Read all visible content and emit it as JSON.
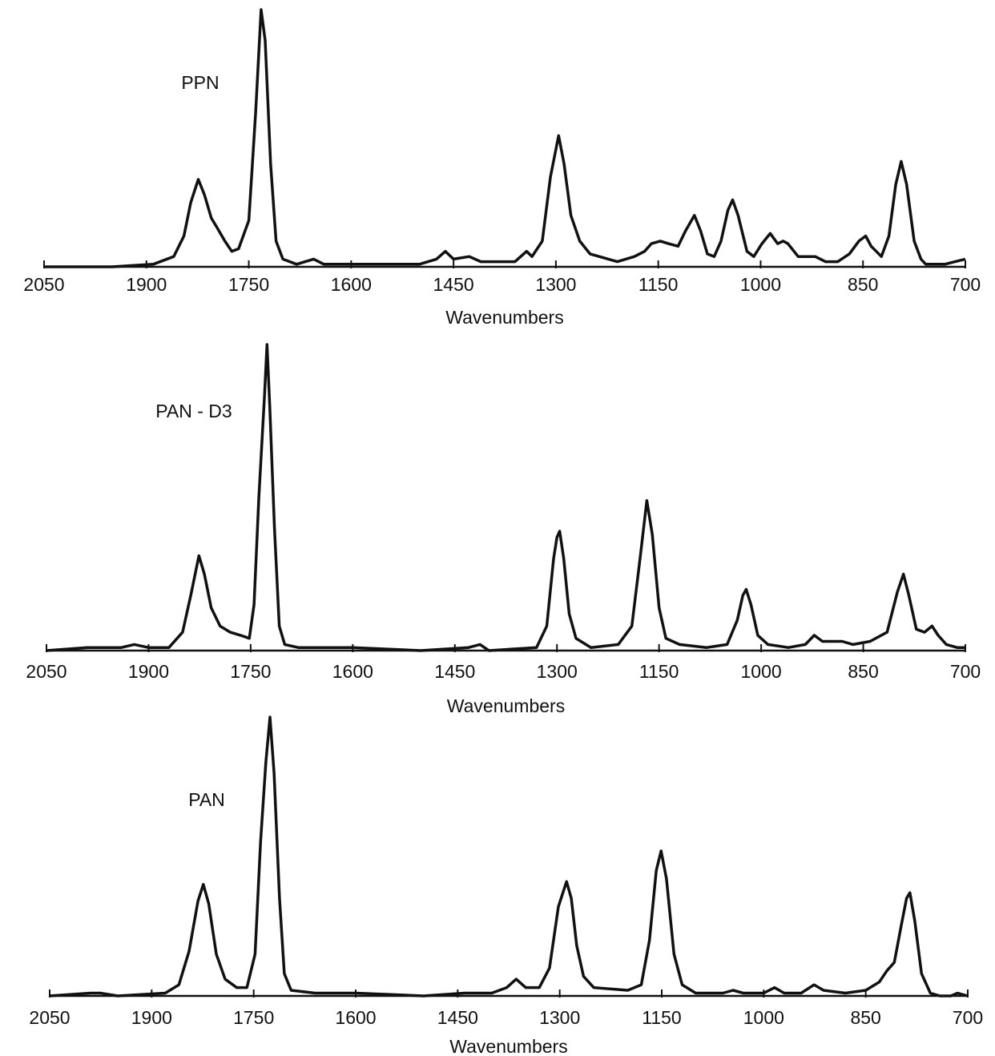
{
  "chart_data": [
    {
      "type": "line",
      "annotation": "PPN",
      "x_label": "Wavenumbers",
      "color": "#111111",
      "xlim": [
        2050,
        700
      ],
      "xticks": [
        2050,
        1900,
        1750,
        1600,
        1450,
        1300,
        1150,
        1000,
        850,
        700
      ],
      "ylim": [
        0,
        100
      ],
      "x": [
        2050,
        1950,
        1890,
        1860,
        1845,
        1835,
        1824,
        1815,
        1805,
        1796,
        1785,
        1775,
        1765,
        1750,
        1740,
        1732,
        1726,
        1718,
        1710,
        1700,
        1680,
        1655,
        1640,
        1560,
        1500,
        1475,
        1462,
        1450,
        1427,
        1410,
        1360,
        1343,
        1335,
        1320,
        1308,
        1296,
        1288,
        1278,
        1265,
        1250,
        1210,
        1185,
        1170,
        1160,
        1147,
        1135,
        1121,
        1110,
        1097,
        1088,
        1078,
        1068,
        1058,
        1048,
        1041,
        1033,
        1020,
        1010,
        998,
        986,
        975,
        967,
        960,
        945,
        930,
        920,
        905,
        887,
        870,
        856,
        846,
        838,
        823,
        812,
        802,
        794,
        786,
        775,
        765,
        758,
        730,
        715,
        700
      ],
      "values": [
        0,
        0,
        1,
        4,
        12,
        25,
        34,
        28,
        19,
        15,
        10,
        6,
        7,
        18,
        60,
        100,
        88,
        40,
        10,
        3,
        1,
        3,
        1,
        1,
        1,
        3,
        6,
        3,
        4,
        2,
        2,
        6,
        4,
        10,
        35,
        51,
        40,
        20,
        10,
        5,
        2,
        4,
        6,
        9,
        10,
        9,
        8,
        14,
        20,
        14,
        5,
        4,
        10,
        22,
        26,
        20,
        6,
        4,
        9,
        13,
        9,
        10,
        9,
        4,
        4,
        4,
        2,
        2,
        5,
        10,
        12,
        8,
        4,
        12,
        32,
        41,
        32,
        10,
        3,
        1,
        1,
        2,
        3
      ]
    },
    {
      "type": "line",
      "annotation": "PAN - D3",
      "x_label": "Wavenumbers",
      "color": "#111111",
      "xlim": [
        2050,
        700
      ],
      "xticks": [
        2050,
        1900,
        1750,
        1600,
        1450,
        1300,
        1150,
        1000,
        850,
        700
      ],
      "ylim": [
        0,
        100
      ],
      "x": [
        2050,
        1990,
        1940,
        1921,
        1900,
        1870,
        1850,
        1838,
        1826,
        1818,
        1808,
        1795,
        1780,
        1765,
        1752,
        1745,
        1738,
        1730,
        1726,
        1722,
        1715,
        1708,
        1700,
        1680,
        1600,
        1500,
        1430,
        1413,
        1400,
        1330,
        1315,
        1305,
        1300,
        1296,
        1290,
        1282,
        1272,
        1250,
        1210,
        1190,
        1178,
        1168,
        1160,
        1150,
        1140,
        1120,
        1080,
        1050,
        1035,
        1027,
        1022,
        1015,
        1005,
        990,
        960,
        935,
        922,
        910,
        895,
        881,
        865,
        840,
        815,
        800,
        791,
        783,
        772,
        760,
        749,
        740,
        728,
        712,
        700
      ],
      "values": [
        0,
        1,
        1,
        2,
        1,
        1,
        6,
        18,
        31,
        25,
        14,
        8,
        6,
        5,
        4,
        15,
        50,
        82,
        100,
        80,
        40,
        8,
        2,
        1,
        1,
        0,
        1,
        2,
        0,
        1,
        8,
        30,
        37,
        39,
        30,
        12,
        4,
        1,
        2,
        8,
        30,
        49,
        38,
        14,
        4,
        2,
        1,
        2,
        10,
        18,
        20,
        15,
        5,
        2,
        1,
        2,
        5,
        3,
        3,
        3,
        2,
        3,
        6,
        19,
        25,
        18,
        7,
        6,
        8,
        5,
        2,
        1,
        1
      ]
    },
    {
      "type": "line",
      "annotation": "PAN",
      "x_label": "Wavenumbers",
      "color": "#111111",
      "xlim": [
        2050,
        700
      ],
      "xticks": [
        2050,
        1900,
        1750,
        1600,
        1450,
        1300,
        1150,
        1000,
        850,
        700
      ],
      "ylim": [
        0,
        100
      ],
      "x": [
        2050,
        1990,
        1975,
        1950,
        1880,
        1860,
        1845,
        1832,
        1824,
        1816,
        1805,
        1792,
        1775,
        1760,
        1748,
        1740,
        1732,
        1726,
        1720,
        1712,
        1705,
        1695,
        1660,
        1600,
        1500,
        1440,
        1400,
        1378,
        1364,
        1350,
        1330,
        1315,
        1302,
        1290,
        1283,
        1275,
        1265,
        1250,
        1200,
        1180,
        1168,
        1158,
        1151,
        1143,
        1132,
        1120,
        1100,
        1060,
        1045,
        1030,
        1000,
        984,
        970,
        945,
        926,
        912,
        880,
        850,
        830,
        819,
        808,
        798,
        790,
        785,
        778,
        768,
        755,
        741,
        725,
        715,
        700
      ],
      "values": [
        0,
        1,
        1,
        0,
        1,
        4,
        16,
        34,
        40,
        33,
        15,
        6,
        3,
        3,
        15,
        55,
        84,
        100,
        80,
        35,
        8,
        2,
        1,
        1,
        0,
        1,
        1,
        3,
        6,
        3,
        3,
        10,
        32,
        41,
        35,
        18,
        7,
        3,
        2,
        4,
        20,
        45,
        52,
        42,
        15,
        4,
        1,
        1,
        2,
        1,
        1,
        3,
        1,
        1,
        4,
        2,
        1,
        2,
        5,
        9,
        12,
        25,
        35,
        37,
        27,
        8,
        1,
        0,
        0,
        1,
        0
      ]
    }
  ]
}
